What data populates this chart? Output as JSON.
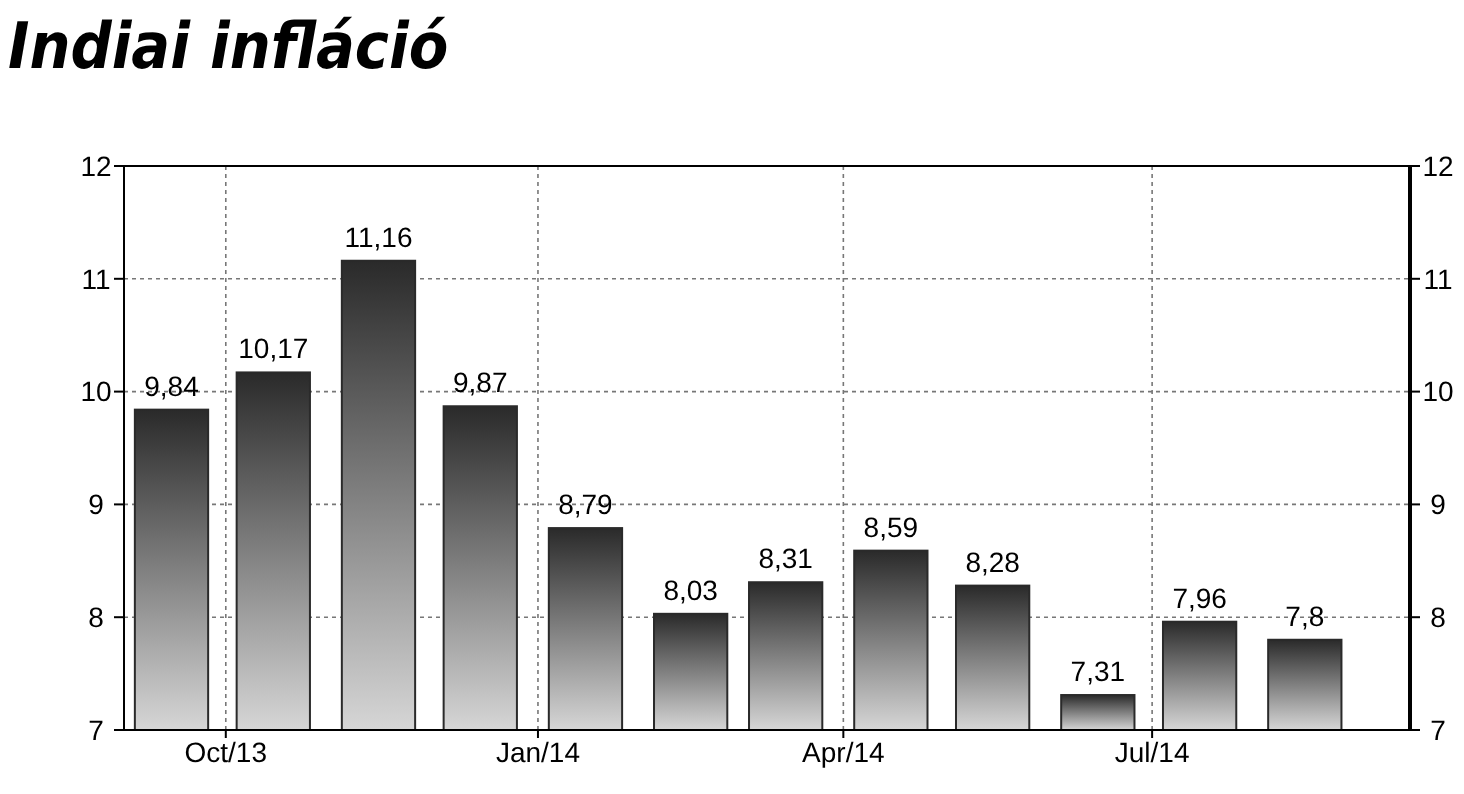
{
  "chart_data": {
    "type": "bar",
    "title": "Indiai infláció",
    "x": [
      "2013-09-15",
      "2013-10-15",
      "2013-11-15",
      "2013-12-15",
      "2014-01-15",
      "2014-02-15",
      "2014-03-15",
      "2014-04-15",
      "2014-05-15",
      "2014-06-15",
      "2014-07-15",
      "2014-08-15"
    ],
    "values": [
      9.84,
      10.17,
      11.16,
      9.87,
      8.79,
      8.03,
      8.31,
      8.59,
      8.28,
      7.31,
      7.96,
      7.8
    ],
    "value_labels": [
      "9,84",
      "10,17",
      "11,16",
      "9,87",
      "8,79",
      "8,03",
      "8,31",
      "8,59",
      "8,28",
      "7,31",
      "7,96",
      "7,8"
    ],
    "color": "#2a2a2a",
    "xlim": [
      "2013-09-01",
      "2014-09-15"
    ],
    "xticks": [
      {
        "value": "2013-10-01",
        "label": "Oct/13"
      },
      {
        "value": "2014-01-01",
        "label": "Jan/14"
      },
      {
        "value": "2014-04-01",
        "label": "Apr/14"
      },
      {
        "value": "2014-07-01",
        "label": "Jul/14"
      }
    ],
    "ylim": [
      7,
      12
    ],
    "yticks": [
      7,
      8,
      9,
      10,
      11,
      12
    ],
    "y2lim": [
      7,
      12
    ],
    "y2ticks": [
      7,
      8,
      9,
      10,
      11,
      12
    ],
    "grid": true
  }
}
